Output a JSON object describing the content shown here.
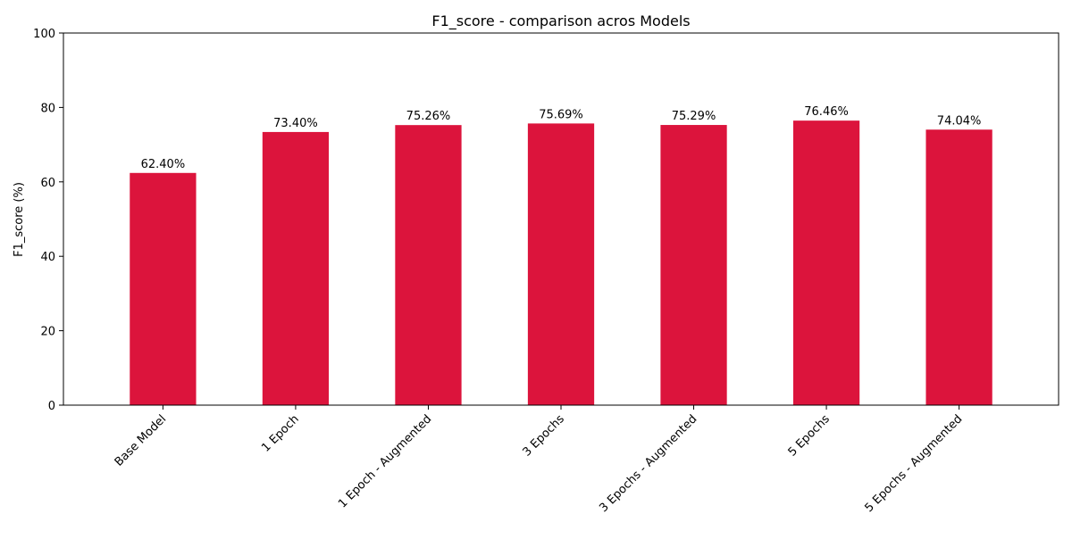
{
  "chart_data": {
    "type": "bar",
    "title": "F1_score - comparison acros Models",
    "xlabel": "",
    "ylabel": "F1_score (%)",
    "ylim": [
      0,
      100
    ],
    "yticks": [
      0,
      20,
      40,
      60,
      80,
      100
    ],
    "categories": [
      "Base Model",
      "1 Epoch",
      "1 Epoch - Augmented",
      "3 Epochs",
      "3 Epochs - Augmented",
      "5 Epochs",
      "5 Epochs - Augmented"
    ],
    "values": [
      62.4,
      73.4,
      75.26,
      75.69,
      75.29,
      76.46,
      74.04
    ],
    "value_labels": [
      "62.40%",
      "73.40%",
      "75.26%",
      "75.69%",
      "75.29%",
      "76.46%",
      "74.04%"
    ],
    "bar_color": "#dc143c",
    "grid": false,
    "legend": "none"
  }
}
